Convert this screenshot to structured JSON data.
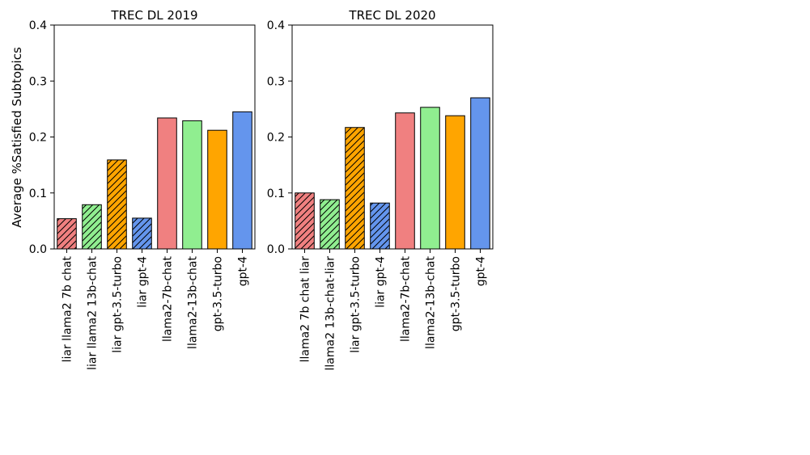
{
  "figure": {
    "ylabel": "Average %Satisfied Subtopics"
  },
  "chart_data": [
    {
      "type": "bar",
      "title": "TREC DL 2019",
      "xlabel": "",
      "ylabel": "Average %Satisfied Subtopics",
      "ylim": [
        0,
        0.4
      ],
      "yticks": [
        "0.0",
        "0.1",
        "0.2",
        "0.3",
        "0.4"
      ],
      "categories": [
        "liar llama2 7b chat",
        "liar llama2 13b-chat",
        "liar gpt-3.5-turbo",
        "liar gpt-4",
        "llama2-7b-chat",
        "llama2-13b-chat",
        "gpt-3.5-turbo",
        "gpt-4"
      ],
      "values": [
        0.054,
        0.079,
        0.159,
        0.055,
        0.234,
        0.229,
        0.212,
        0.245
      ],
      "colors": [
        "#f08080",
        "#90ee90",
        "#ffa500",
        "#6495ed",
        "#f08080",
        "#90ee90",
        "#ffa500",
        "#6495ed"
      ],
      "hatched": [
        true,
        true,
        true,
        true,
        false,
        false,
        false,
        false
      ]
    },
    {
      "type": "bar",
      "title": "TREC DL 2020",
      "xlabel": "",
      "ylabel": "",
      "ylim": [
        0,
        0.4
      ],
      "yticks": [
        "0.0",
        "0.1",
        "0.2",
        "0.3",
        "0.4"
      ],
      "categories": [
        "llama2 7b chat liar",
        "llama2 13b-chat-liar",
        "liar gpt-3.5-turbo",
        "liar gpt-4",
        "llama2-7b-chat",
        "llama2-13b-chat",
        "gpt-3.5-turbo",
        "gpt-4"
      ],
      "values": [
        0.1,
        0.088,
        0.217,
        0.082,
        0.243,
        0.253,
        0.238,
        0.27
      ],
      "colors": [
        "#f08080",
        "#90ee90",
        "#ffa500",
        "#6495ed",
        "#f08080",
        "#90ee90",
        "#ffa500",
        "#6495ed"
      ],
      "hatched": [
        true,
        true,
        true,
        true,
        false,
        false,
        false,
        false
      ]
    }
  ]
}
